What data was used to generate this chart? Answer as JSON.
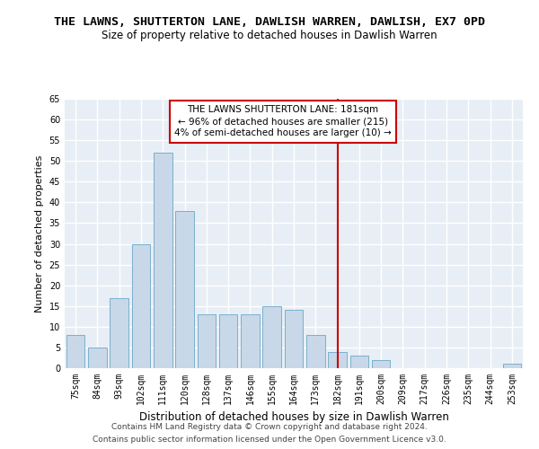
{
  "title": "THE LAWNS, SHUTTERTON LANE, DAWLISH WARREN, DAWLISH, EX7 0PD",
  "subtitle": "Size of property relative to detached houses in Dawlish Warren",
  "xlabel": "Distribution of detached houses by size in Dawlish Warren",
  "ylabel": "Number of detached properties",
  "categories": [
    "75sqm",
    "84sqm",
    "93sqm",
    "102sqm",
    "111sqm",
    "120sqm",
    "128sqm",
    "137sqm",
    "146sqm",
    "155sqm",
    "164sqm",
    "173sqm",
    "182sqm",
    "191sqm",
    "200sqm",
    "209sqm",
    "217sqm",
    "226sqm",
    "235sqm",
    "244sqm",
    "253sqm"
  ],
  "values": [
    8,
    5,
    17,
    30,
    52,
    38,
    13,
    13,
    13,
    15,
    14,
    8,
    4,
    3,
    2,
    0,
    0,
    0,
    0,
    0,
    1
  ],
  "bar_color": "#c8d8e8",
  "bar_edge_color": "#7ab0cc",
  "bar_width": 0.85,
  "vline_x": 12,
  "vline_color": "#cc0000",
  "annotation_title": "THE LAWNS SHUTTERTON LANE: 181sqm",
  "annotation_line1": "← 96% of detached houses are smaller (215)",
  "annotation_line2": "4% of semi-detached houses are larger (10) →",
  "annotation_box_color": "#ffffff",
  "annotation_box_edge": "#cc0000",
  "ylim": [
    0,
    65
  ],
  "yticks": [
    0,
    5,
    10,
    15,
    20,
    25,
    30,
    35,
    40,
    45,
    50,
    55,
    60,
    65
  ],
  "background_color": "#e8eef5",
  "grid_color": "#ffffff",
  "fig_background": "#ffffff",
  "footer_line1": "Contains HM Land Registry data © Crown copyright and database right 2024.",
  "footer_line2": "Contains public sector information licensed under the Open Government Licence v3.0.",
  "title_fontsize": 9.5,
  "subtitle_fontsize": 8.5,
  "xlabel_fontsize": 8.5,
  "ylabel_fontsize": 8,
  "tick_fontsize": 7,
  "footer_fontsize": 6.5,
  "ann_fontsize": 7.5
}
